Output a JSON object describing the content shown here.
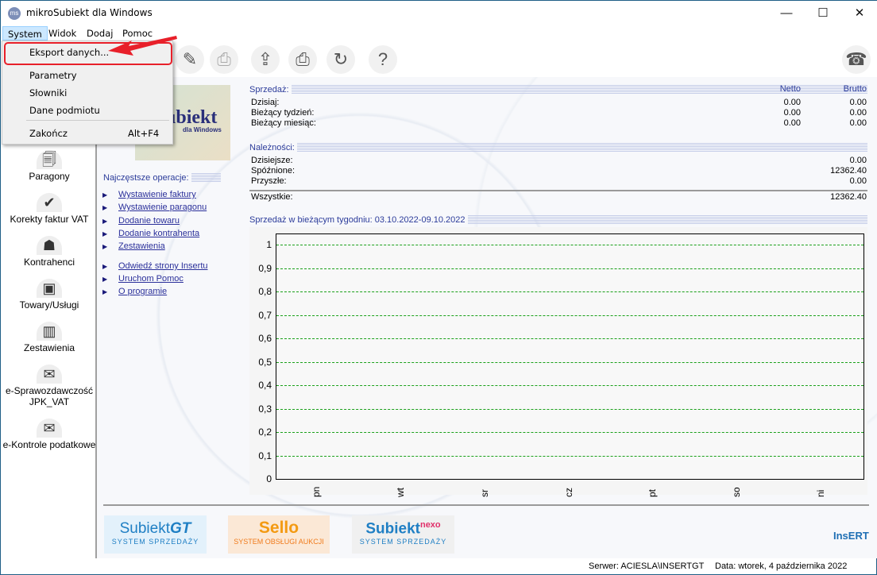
{
  "window": {
    "title": "mikroSubiekt dla Windows",
    "minimize": "—",
    "maximize": "☐",
    "close": "✕"
  },
  "menubar": [
    "System",
    "Widok",
    "Dodaj",
    "Pomoc"
  ],
  "system_menu": {
    "items": [
      {
        "label": "Eksport danych..."
      },
      {
        "label": "Parametry"
      },
      {
        "label": "Słowniki"
      },
      {
        "label": "Dane podmiotu"
      },
      {
        "label": "Zakończ",
        "shortcut": "Alt+F4"
      }
    ],
    "highlight_color": "#e8202a"
  },
  "toolbar": [
    {
      "icon": "pen-icon",
      "glyph": "✎"
    },
    {
      "icon": "printer-disabled-icon",
      "glyph": "⎙"
    },
    {
      "icon": "export-icon",
      "glyph": "⇪"
    },
    {
      "icon": "printer-icon",
      "glyph": "⎙"
    },
    {
      "icon": "refresh-icon",
      "glyph": "↻"
    },
    {
      "icon": "help-icon",
      "glyph": "?"
    },
    {
      "icon": "fax-icon",
      "glyph": "☎"
    }
  ],
  "sidebar": [
    {
      "label": "Paragony",
      "glyph": "🗐"
    },
    {
      "label": "Korekty faktur VAT",
      "glyph": "✔"
    },
    {
      "label": "Kontrahenci",
      "glyph": "☗"
    },
    {
      "label": "Towary/Usługi",
      "glyph": "▣"
    },
    {
      "label": "Zestawienia",
      "glyph": "▥"
    },
    {
      "label": "e-Sprawozdawczość JPK_VAT",
      "glyph": "✉"
    },
    {
      "label": "e-Kontrole podatkowe",
      "glyph": "✉"
    }
  ],
  "logo": {
    "text": "ubiekt",
    "sub": "dla Windows"
  },
  "ops": {
    "title": "Najczęstsze operacje:",
    "links": [
      "Wystawienie faktury",
      "Wystawienie paragonu",
      "Dodanie towaru",
      "Dodanie kontrahenta",
      "Zestawienia",
      "Odwiedź strony Insertu",
      "Uruchom Pomoc",
      "O programie"
    ]
  },
  "sales": {
    "title": "Sprzedaż:",
    "col_netto": "Netto",
    "col_brutto": "Brutto",
    "rows": [
      {
        "label": "Dzisiaj:",
        "netto": "0.00",
        "brutto": "0.00"
      },
      {
        "label": "Bieżący tydzień:",
        "netto": "0.00",
        "brutto": "0.00"
      },
      {
        "label": "Bieżący miesiąc:",
        "netto": "0.00",
        "brutto": "0.00"
      }
    ]
  },
  "receivables": {
    "title": "Należności:",
    "rows": [
      {
        "label": "Dzisiejsze:",
        "value": "0.00"
      },
      {
        "label": "Spóźnione:",
        "value": "12362.40"
      },
      {
        "label": "Przyszłe:",
        "value": "0.00"
      }
    ],
    "total_label": "Wszystkie:",
    "total_value": "12362.40"
  },
  "chart_data": {
    "type": "bar",
    "title": "Sprzedaż w bieżącym tygodniu: 03.10.2022-09.10.2022",
    "categories": [
      "pn",
      "wt",
      "sr",
      "cz",
      "pt",
      "so",
      "ni"
    ],
    "values": [
      0,
      0,
      0,
      0,
      0,
      0,
      0
    ],
    "ylim": [
      0,
      1
    ],
    "yticks": [
      "0",
      "0,1",
      "0,2",
      "0,3",
      "0,4",
      "0,5",
      "0,6",
      "0,7",
      "0,8",
      "0,9",
      "1"
    ],
    "grid": true,
    "grid_color": "#19a019"
  },
  "brands": [
    {
      "name": "Subiekt",
      "suffix": "GT",
      "tagline": "SYSTEM SPRZEDAŻY"
    },
    {
      "name": "Sello",
      "tagline": "SYSTEM OBSŁUGI AUKCJI"
    },
    {
      "name": "Subiekt",
      "suffix": "nexo",
      "tagline": "SYSTEM SPRZEDAŻY"
    },
    {
      "name": "InsERT"
    }
  ],
  "status": {
    "server": "Serwer: ACIESLA\\INSERTGT",
    "date": "Data: wtorek, 4 października 2022"
  }
}
